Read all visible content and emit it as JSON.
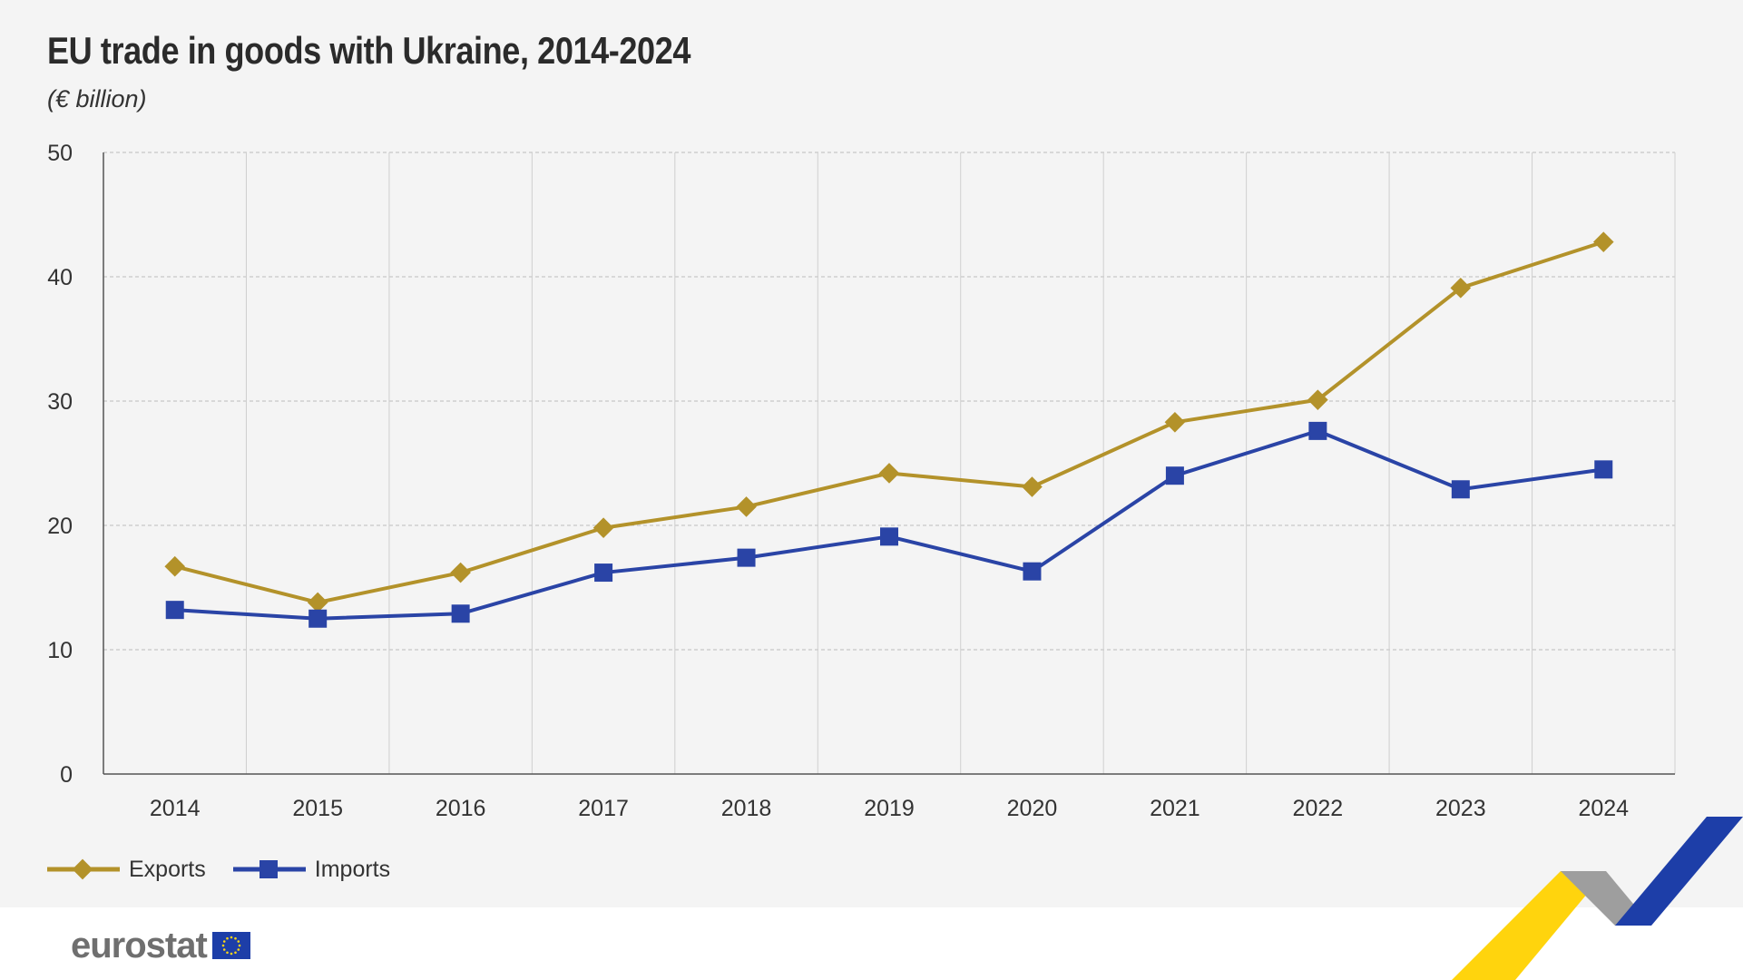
{
  "title": "EU trade in goods with Ukraine, 2014-2024",
  "subtitle": "(€ billion)",
  "logo": {
    "text": "eurostat"
  },
  "colors": {
    "exports": "#b3922a",
    "imports": "#2a44a6",
    "background": "#f4f4f4",
    "grid": "#c8c8c8"
  },
  "chart_data": {
    "type": "line",
    "categories": [
      "2014",
      "2015",
      "2016",
      "2017",
      "2018",
      "2019",
      "2020",
      "2021",
      "2022",
      "2023",
      "2024"
    ],
    "series": [
      {
        "name": "Exports",
        "marker": "diamond",
        "color": "#b3922a",
        "values": [
          16.7,
          13.8,
          16.2,
          19.8,
          21.5,
          24.2,
          23.1,
          28.3,
          30.1,
          39.1,
          42.8
        ]
      },
      {
        "name": "Imports",
        "marker": "square",
        "color": "#2a44a6",
        "values": [
          13.2,
          12.5,
          12.9,
          16.2,
          17.4,
          19.1,
          16.3,
          24.0,
          27.6,
          22.9,
          24.5
        ]
      }
    ],
    "yticks": [
      "0",
      "10",
      "20",
      "30",
      "40",
      "50"
    ],
    "ylim": [
      0,
      50
    ],
    "xlabel": "",
    "ylabel": "",
    "grid": true,
    "legend": "bottom-left"
  }
}
